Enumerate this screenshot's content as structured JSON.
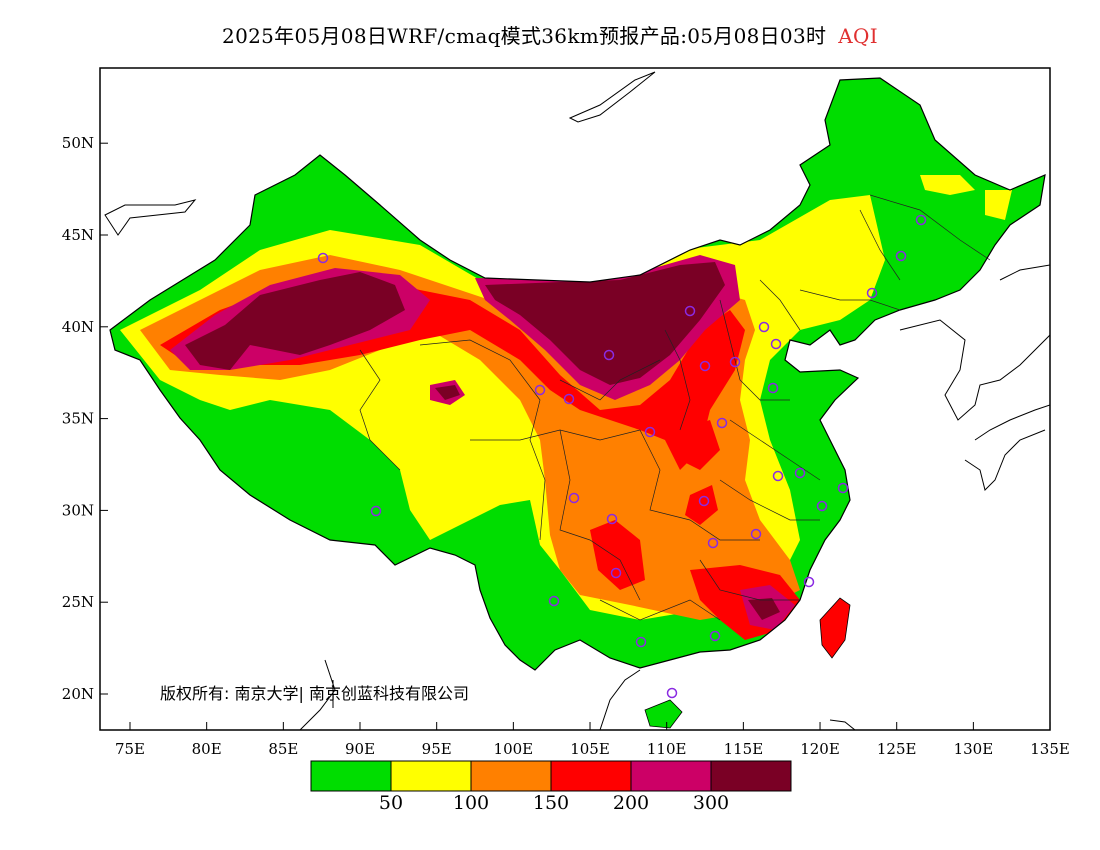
{
  "title": {
    "main": "2025年05月08日WRF/cmaq模式36km预报产品:05月08日03时",
    "variable": "AQI"
  },
  "axes": {
    "lat_labels": [
      "20N",
      "25N",
      "30N",
      "35N",
      "40N",
      "45N",
      "50N"
    ],
    "lon_labels": [
      "75E",
      "80E",
      "85E",
      "90E",
      "95E",
      "100E",
      "105E",
      "110E",
      "115E",
      "120E",
      "125E",
      "130E",
      "135E"
    ]
  },
  "copyright": "版权所有: 南京大学| 南京创蓝科技有限公司",
  "legend": {
    "colors": [
      "#00dd00",
      "#ffff00",
      "#ff8000",
      "#ff0000",
      "#cc0066",
      "#7a0025"
    ],
    "labels": [
      "50",
      "100",
      "150",
      "200",
      "300"
    ]
  },
  "colors": {
    "good": "#00dd00",
    "moderate": "#ffff00",
    "sensitive": "#ff8000",
    "unhealthy": "#ff0000",
    "very_unhealthy": "#cc0066",
    "hazardous": "#7a0025",
    "station_marker": "#8a2be2"
  }
}
